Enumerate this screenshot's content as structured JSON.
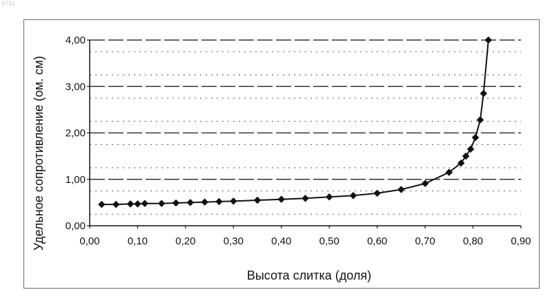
{
  "page": {
    "corner_label": "9791"
  },
  "chart_data": {
    "type": "line",
    "xlabel": "Высота слитка (доля)",
    "ylabel": "Удельное сопротивление (ом. см)",
    "xlim": [
      0,
      0.9
    ],
    "ylim": [
      0,
      4
    ],
    "x_ticks": [
      "0,00",
      "0,10",
      "0,20",
      "0,30",
      "0,40",
      "0,50",
      "0,60",
      "0,70",
      "0,80",
      "0,90"
    ],
    "y_ticks": [
      "0,00",
      "1,00",
      "2,00",
      "3,00",
      "4,00"
    ],
    "grid": "horizontal dashed",
    "marker": "diamond",
    "colors": {
      "line": "#111111",
      "grid": "#333333"
    },
    "series": [
      {
        "x": [
          0.025,
          0.055,
          0.085,
          0.1,
          0.115,
          0.15,
          0.18,
          0.21,
          0.24,
          0.27,
          0.3,
          0.35,
          0.4,
          0.45,
          0.5,
          0.55,
          0.6,
          0.65,
          0.7,
          0.75,
          0.775,
          0.785,
          0.795,
          0.805,
          0.815,
          0.822,
          0.832
        ],
        "y": [
          0.46,
          0.46,
          0.47,
          0.47,
          0.48,
          0.48,
          0.49,
          0.5,
          0.51,
          0.52,
          0.53,
          0.55,
          0.57,
          0.59,
          0.62,
          0.65,
          0.7,
          0.78,
          0.91,
          1.15,
          1.35,
          1.5,
          1.65,
          1.9,
          2.28,
          2.85,
          4.0
        ]
      }
    ]
  }
}
